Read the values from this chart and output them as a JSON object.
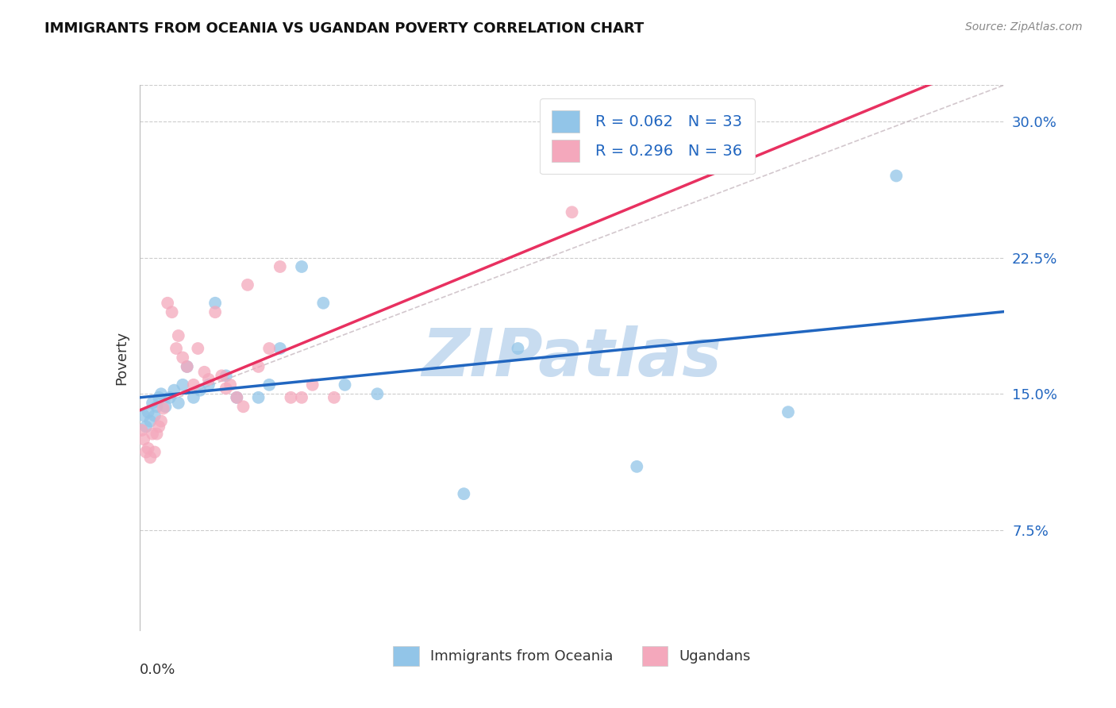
{
  "title": "IMMIGRANTS FROM OCEANIA VS UGANDAN POVERTY CORRELATION CHART",
  "source": "Source: ZipAtlas.com",
  "ylabel": "Poverty",
  "y_ticks": [
    0.075,
    0.15,
    0.225,
    0.3
  ],
  "y_tick_labels": [
    "7.5%",
    "15.0%",
    "22.5%",
    "30.0%"
  ],
  "xlim": [
    0.0,
    0.4
  ],
  "ylim": [
    0.02,
    0.32
  ],
  "legend1_label": "R = 0.062   N = 33",
  "legend2_label": "R = 0.296   N = 36",
  "legend_bottom1": "Immigrants from Oceania",
  "legend_bottom2": "Ugandans",
  "blue_color": "#92C5E8",
  "pink_color": "#F4A8BC",
  "line_blue": "#2166C0",
  "line_pink": "#E83060",
  "line_gray_dashed": "#C0B0B8",
  "text_blue": "#2166C0",
  "blue_scatter_x": [
    0.002,
    0.003,
    0.004,
    0.005,
    0.006,
    0.007,
    0.008,
    0.009,
    0.01,
    0.012,
    0.014,
    0.016,
    0.018,
    0.02,
    0.022,
    0.025,
    0.028,
    0.032,
    0.035,
    0.04,
    0.045,
    0.055,
    0.06,
    0.065,
    0.075,
    0.085,
    0.095,
    0.11,
    0.15,
    0.175,
    0.23,
    0.3,
    0.35
  ],
  "blue_scatter_y": [
    0.138,
    0.132,
    0.14,
    0.135,
    0.145,
    0.138,
    0.143,
    0.148,
    0.15,
    0.143,
    0.148,
    0.152,
    0.145,
    0.155,
    0.165,
    0.148,
    0.152,
    0.155,
    0.2,
    0.16,
    0.148,
    0.148,
    0.155,
    0.175,
    0.22,
    0.2,
    0.155,
    0.15,
    0.095,
    0.175,
    0.11,
    0.14,
    0.27
  ],
  "pink_scatter_x": [
    0.001,
    0.002,
    0.003,
    0.004,
    0.005,
    0.006,
    0.007,
    0.008,
    0.009,
    0.01,
    0.011,
    0.013,
    0.015,
    0.017,
    0.018,
    0.02,
    0.022,
    0.025,
    0.027,
    0.03,
    0.032,
    0.035,
    0.038,
    0.04,
    0.042,
    0.045,
    0.048,
    0.05,
    0.055,
    0.06,
    0.065,
    0.07,
    0.075,
    0.08,
    0.09,
    0.2
  ],
  "pink_scatter_y": [
    0.13,
    0.125,
    0.118,
    0.12,
    0.115,
    0.128,
    0.118,
    0.128,
    0.132,
    0.135,
    0.142,
    0.2,
    0.195,
    0.175,
    0.182,
    0.17,
    0.165,
    0.155,
    0.175,
    0.162,
    0.158,
    0.195,
    0.16,
    0.153,
    0.155,
    0.148,
    0.143,
    0.21,
    0.165,
    0.175,
    0.22,
    0.148,
    0.148,
    0.155,
    0.148,
    0.25
  ],
  "watermark_text": "ZIPatlas",
  "watermark_color": "#C8DCF0",
  "marker_size": 130,
  "marker_alpha": 0.75
}
